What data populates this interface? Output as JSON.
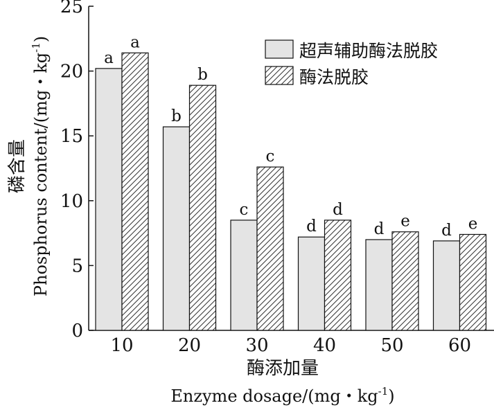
{
  "chart_data": {
    "type": "bar",
    "categories": [
      "10",
      "20",
      "30",
      "40",
      "50",
      "60"
    ],
    "series": [
      {
        "name": "超声辅助酶法脱胶",
        "pattern": "solid",
        "color": "#e4e4e4",
        "values": [
          20.2,
          15.7,
          8.5,
          7.2,
          7.0,
          6.9
        ],
        "letters": [
          "a",
          "b",
          "c",
          "d",
          "d",
          "d"
        ]
      },
      {
        "name": "酶法脱胶",
        "pattern": "hatched",
        "color": "#ffffff",
        "values": [
          21.4,
          18.9,
          12.6,
          8.5,
          7.6,
          7.4
        ],
        "letters": [
          "a",
          "b",
          "c",
          "d",
          "e",
          "e"
        ]
      }
    ],
    "xlabel_cn": "酶添加量",
    "xlabel_en": "Enzyme dosage/(mg・kg",
    "xlabel_en_sup": "-1",
    "xlabel_en_end": ")",
    "ylabel_cn": "磷含量",
    "ylabel_en": "Phosphorus content/(mg・kg",
    "ylabel_en_sup": "-1",
    "ylabel_en_end": ")",
    "ylim": [
      0,
      25
    ],
    "yticks": [
      0,
      5,
      10,
      15,
      20,
      25
    ],
    "grid": false,
    "legend_position": "top-right"
  }
}
